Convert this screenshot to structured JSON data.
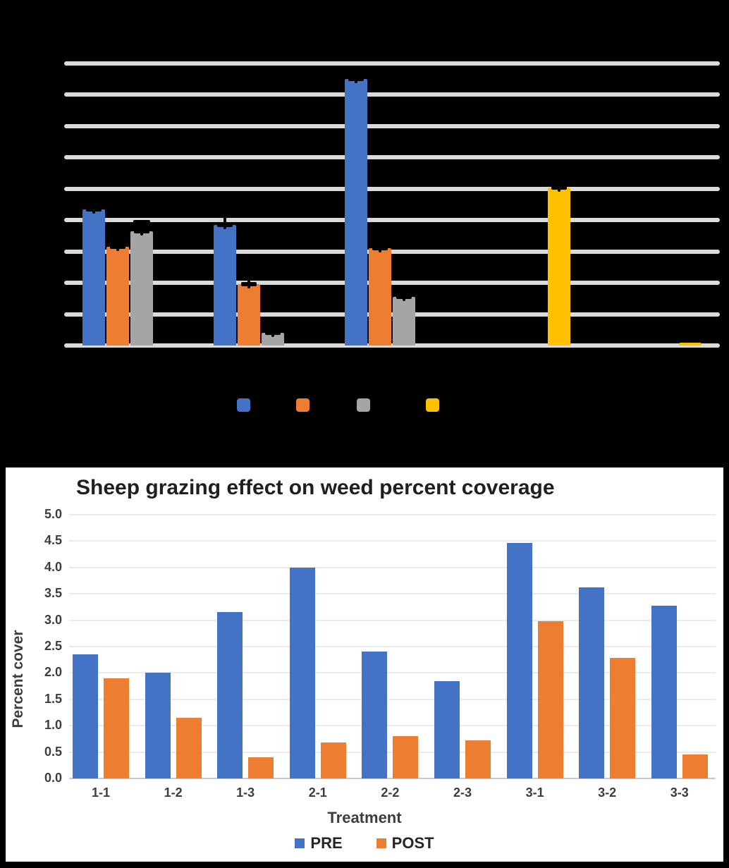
{
  "page": {
    "background": "#000000"
  },
  "chart_data": [
    {
      "type": "bar",
      "title": "",
      "note": "chart drawn on black background; title, axis tick labels and legend text are black-on-black and not visible",
      "categories": [
        "",
        "",
        "",
        "",
        ""
      ],
      "series": [
        {
          "name": "",
          "color": "#4472C4",
          "values": [
            4.35,
            3.85,
            8.5,
            0,
            0
          ]
        },
        {
          "name": "",
          "color": "#ED7D31",
          "values": [
            3.15,
            1.95,
            3.1,
            0,
            0
          ]
        },
        {
          "name": "",
          "color": "#A5A5A5",
          "values": [
            3.65,
            0.4,
            1.55,
            0,
            0
          ]
        },
        {
          "name": "",
          "color": "#FFC000",
          "values": [
            0,
            0,
            0,
            5.05,
            0.1
          ]
        }
      ],
      "ylim": [
        0,
        9
      ],
      "units": "gridline intervals (axis labels not visible)",
      "gridline_count": 10,
      "grid_color": "#DBDBDB",
      "error_bars": true,
      "error_bar_color": "#000000",
      "legend_position": "bottom",
      "legend_swatch_colors": [
        "#4472C4",
        "#ED7D31",
        "#A5A5A5",
        "#FFC000"
      ],
      "background": "#000000"
    },
    {
      "type": "bar",
      "title": "Sheep grazing effect on weed percent coverage",
      "xlabel": "Treatment",
      "ylabel": "Percent cover",
      "categories": [
        "1-1",
        "1-2",
        "1-3",
        "2-1",
        "2-2",
        "2-3",
        "3-1",
        "3-2",
        "3-3"
      ],
      "series": [
        {
          "name": "PRE",
          "color": "#4472C4",
          "values": [
            2.35,
            2.0,
            3.15,
            4.0,
            2.4,
            1.85,
            4.47,
            3.62,
            3.27
          ]
        },
        {
          "name": "POST",
          "color": "#ED7D31",
          "values": [
            1.9,
            1.15,
            0.4,
            0.68,
            0.8,
            0.72,
            2.98,
            2.29,
            0.45
          ]
        }
      ],
      "ylim": [
        0,
        5
      ],
      "ytick_step": 0.5,
      "yticks": [
        "5.0",
        "4.5",
        "4.0",
        "3.5",
        "3.0",
        "2.5",
        "2.0",
        "1.5",
        "1.0",
        "0.5",
        "0.0"
      ],
      "grid": true,
      "legend_position": "bottom",
      "background": "#FFFFFF"
    }
  ]
}
